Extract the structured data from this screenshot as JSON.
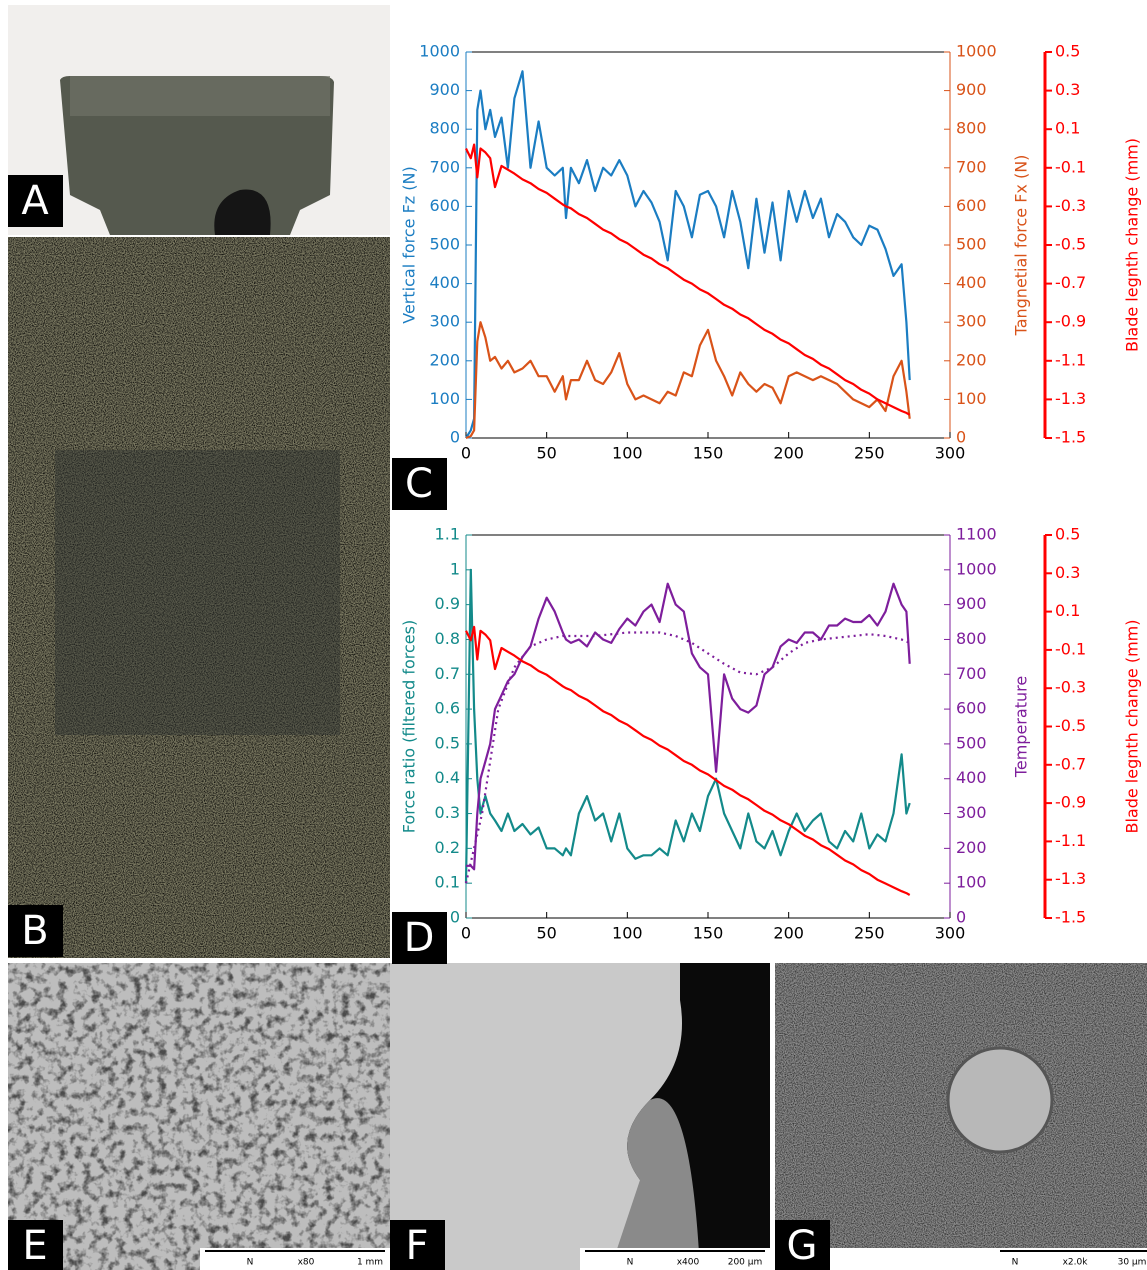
{
  "panels": [
    {
      "label": "A"
    },
    {
      "label": "B"
    },
    {
      "label": "C"
    },
    {
      "label": "D"
    },
    {
      "label": "E",
      "scale": [
        "N",
        "x80",
        "1 mm"
      ]
    },
    {
      "label": "F",
      "scale": [
        "N",
        "x400",
        "200 µm"
      ]
    },
    {
      "label": "G",
      "scale": [
        "N",
        "x2.0k",
        "30 µm"
      ]
    }
  ],
  "chart_data": [
    {
      "type": "line",
      "x": [
        0,
        3,
        5,
        7,
        9,
        12,
        15,
        18,
        22,
        26,
        30,
        35,
        40,
        45,
        50,
        55,
        60,
        62,
        65,
        70,
        75,
        80,
        85,
        90,
        95,
        100,
        105,
        110,
        115,
        120,
        125,
        130,
        135,
        140,
        145,
        150,
        155,
        160,
        165,
        170,
        175,
        180,
        185,
        190,
        195,
        200,
        205,
        210,
        215,
        220,
        225,
        230,
        235,
        240,
        245,
        250,
        255,
        260,
        265,
        270,
        273,
        275
      ],
      "xlim": [
        0,
        300
      ],
      "xticks": [
        0,
        50,
        100,
        150,
        200,
        250,
        300
      ],
      "ylim": [
        0,
        1000
      ],
      "yticks": [
        0,
        100,
        200,
        300,
        400,
        500,
        600,
        700,
        800,
        900,
        1000
      ],
      "y2lim": [
        0,
        1000
      ],
      "y2ticks": [
        0,
        100,
        200,
        300,
        400,
        500,
        600,
        700,
        800,
        900,
        1000
      ],
      "y3lim": [
        -1.5,
        0.5
      ],
      "y3ticks": [
        0.5,
        0.3,
        0.1,
        -0.1,
        -0.3,
        -0.5,
        -0.7,
        -0.9,
        -1.1,
        -1.3,
        -1.5
      ],
      "ylabel": "Vertical force Fz (N)",
      "y2label": "Tangnetial force Fx (N)",
      "y3label": "Blade legnth change (mm)",
      "ycolor": "#1b7dc2",
      "y2color": "#d95319",
      "y3color": "#ff0000",
      "series": [
        {
          "color": "#1b7dc2",
          "values": [
            0,
            20,
            50,
            850,
            900,
            800,
            850,
            780,
            830,
            700,
            880,
            950,
            700,
            820,
            700,
            680,
            700,
            570,
            700,
            660,
            720,
            640,
            700,
            680,
            720,
            680,
            600,
            640,
            610,
            560,
            460,
            640,
            600,
            520,
            630,
            640,
            600,
            520,
            640,
            560,
            440,
            620,
            480,
            610,
            460,
            640,
            560,
            640,
            570,
            620,
            520,
            580,
            560,
            520,
            500,
            550,
            540,
            490,
            420,
            450,
            300,
            150
          ]
        },
        {
          "color": "#d95319",
          "axis": "y2",
          "values": [
            0,
            5,
            20,
            250,
            300,
            260,
            200,
            210,
            180,
            200,
            170,
            180,
            200,
            160,
            160,
            120,
            160,
            100,
            150,
            150,
            200,
            150,
            140,
            170,
            220,
            140,
            100,
            110,
            100,
            90,
            120,
            110,
            170,
            160,
            240,
            280,
            200,
            160,
            110,
            170,
            140,
            120,
            140,
            130,
            90,
            160,
            170,
            160,
            150,
            160,
            150,
            140,
            120,
            100,
            90,
            80,
            100,
            70,
            160,
            200,
            120,
            50
          ]
        },
        {
          "color": "#ff0000",
          "axis": "y3",
          "values": [
            0.0,
            -0.05,
            0.02,
            -0.15,
            0.0,
            -0.02,
            -0.05,
            -0.2,
            -0.09,
            -0.11,
            -0.13,
            -0.16,
            -0.18,
            -0.21,
            -0.23,
            -0.26,
            -0.29,
            -0.3,
            -0.31,
            -0.34,
            -0.36,
            -0.39,
            -0.42,
            -0.44,
            -0.47,
            -0.49,
            -0.52,
            -0.55,
            -0.57,
            -0.6,
            -0.62,
            -0.65,
            -0.68,
            -0.7,
            -0.73,
            -0.75,
            -0.78,
            -0.81,
            -0.83,
            -0.86,
            -0.88,
            -0.91,
            -0.94,
            -0.96,
            -0.99,
            -1.01,
            -1.04,
            -1.07,
            -1.09,
            -1.12,
            -1.14,
            -1.17,
            -1.2,
            -1.22,
            -1.25,
            -1.27,
            -1.3,
            -1.32,
            -1.34,
            -1.36,
            -1.37,
            -1.38
          ]
        }
      ]
    },
    {
      "type": "line",
      "x": [
        0,
        3,
        5,
        7,
        9,
        12,
        15,
        18,
        22,
        26,
        30,
        35,
        40,
        45,
        50,
        55,
        60,
        62,
        65,
        70,
        75,
        80,
        85,
        90,
        95,
        100,
        105,
        110,
        115,
        120,
        125,
        130,
        135,
        140,
        145,
        150,
        155,
        160,
        165,
        170,
        175,
        180,
        185,
        190,
        195,
        200,
        205,
        210,
        215,
        220,
        225,
        230,
        235,
        240,
        245,
        250,
        255,
        260,
        265,
        270,
        273,
        275
      ],
      "xlim": [
        0,
        300
      ],
      "xticks": [
        0,
        50,
        100,
        150,
        200,
        250,
        300
      ],
      "ylim": [
        0,
        1.1
      ],
      "yticks": [
        0,
        0.1,
        0.2,
        0.3,
        0.4,
        0.5,
        0.6,
        0.7,
        0.8,
        0.9,
        1,
        1.1
      ],
      "y2lim": [
        0,
        1100
      ],
      "y2ticks": [
        0,
        100,
        200,
        300,
        400,
        500,
        600,
        700,
        800,
        900,
        1000,
        1100
      ],
      "y3lim": [
        -1.5,
        0.5
      ],
      "y3ticks": [
        0.5,
        0.3,
        0.1,
        -0.1,
        -0.3,
        -0.5,
        -0.7,
        -0.9,
        -1.1,
        -1.3,
        -1.5
      ],
      "ylabel": "Force ratio (filtered forces)",
      "y2label": "Temperature",
      "y3label": "Blade legnth change (mm)",
      "ycolor": "#138a8a",
      "y2color": "#7e1e9c",
      "y3color": "#ff0000",
      "series": [
        {
          "color": "#138a8a",
          "values": [
            0.1,
            1.0,
            0.6,
            0.4,
            0.3,
            0.35,
            0.3,
            0.28,
            0.25,
            0.3,
            0.25,
            0.27,
            0.24,
            0.26,
            0.2,
            0.2,
            0.18,
            0.2,
            0.18,
            0.3,
            0.35,
            0.28,
            0.3,
            0.22,
            0.3,
            0.2,
            0.17,
            0.18,
            0.18,
            0.2,
            0.18,
            0.28,
            0.22,
            0.3,
            0.25,
            0.35,
            0.4,
            0.3,
            0.25,
            0.2,
            0.3,
            0.22,
            0.2,
            0.25,
            0.18,
            0.25,
            0.3,
            0.25,
            0.28,
            0.3,
            0.22,
            0.2,
            0.25,
            0.22,
            0.3,
            0.2,
            0.24,
            0.22,
            0.3,
            0.47,
            0.3,
            0.33
          ]
        },
        {
          "color": "#7e1e9c",
          "axis": "y2",
          "values": [
            150,
            150,
            140,
            300,
            400,
            450,
            500,
            600,
            640,
            680,
            700,
            750,
            780,
            860,
            920,
            880,
            820,
            800,
            790,
            800,
            780,
            820,
            800,
            790,
            830,
            860,
            840,
            880,
            900,
            850,
            960,
            900,
            880,
            760,
            720,
            700,
            420,
            700,
            630,
            600,
            590,
            610,
            700,
            720,
            780,
            800,
            790,
            820,
            820,
            800,
            840,
            840,
            860,
            850,
            850,
            870,
            840,
            880,
            960,
            900,
            880,
            730
          ]
        },
        {
          "color": "#7e1e9c",
          "axis": "y2",
          "style": "dotted",
          "x": [
            0,
            10,
            20,
            30,
            40,
            50,
            60,
            80,
            100,
            120,
            130,
            140,
            150,
            160,
            170,
            180,
            190,
            200,
            210,
            220,
            230,
            240,
            250,
            260,
            270,
            275
          ],
          "values": [
            100,
            300,
            600,
            720,
            780,
            800,
            810,
            810,
            820,
            820,
            810,
            790,
            760,
            730,
            705,
            700,
            720,
            760,
            790,
            800,
            805,
            810,
            815,
            810,
            800,
            790
          ]
        },
        {
          "color": "#ff0000",
          "axis": "y3",
          "values": [
            0.0,
            -0.05,
            0.02,
            -0.15,
            0.0,
            -0.02,
            -0.05,
            -0.2,
            -0.09,
            -0.11,
            -0.13,
            -0.16,
            -0.18,
            -0.21,
            -0.23,
            -0.26,
            -0.29,
            -0.3,
            -0.31,
            -0.34,
            -0.36,
            -0.39,
            -0.42,
            -0.44,
            -0.47,
            -0.49,
            -0.52,
            -0.55,
            -0.57,
            -0.6,
            -0.62,
            -0.65,
            -0.68,
            -0.7,
            -0.73,
            -0.75,
            -0.78,
            -0.81,
            -0.83,
            -0.86,
            -0.88,
            -0.91,
            -0.94,
            -0.96,
            -0.99,
            -1.01,
            -1.04,
            -1.07,
            -1.09,
            -1.12,
            -1.14,
            -1.17,
            -1.2,
            -1.22,
            -1.25,
            -1.27,
            -1.3,
            -1.32,
            -1.34,
            -1.36,
            -1.37,
            -1.38
          ]
        }
      ]
    }
  ]
}
